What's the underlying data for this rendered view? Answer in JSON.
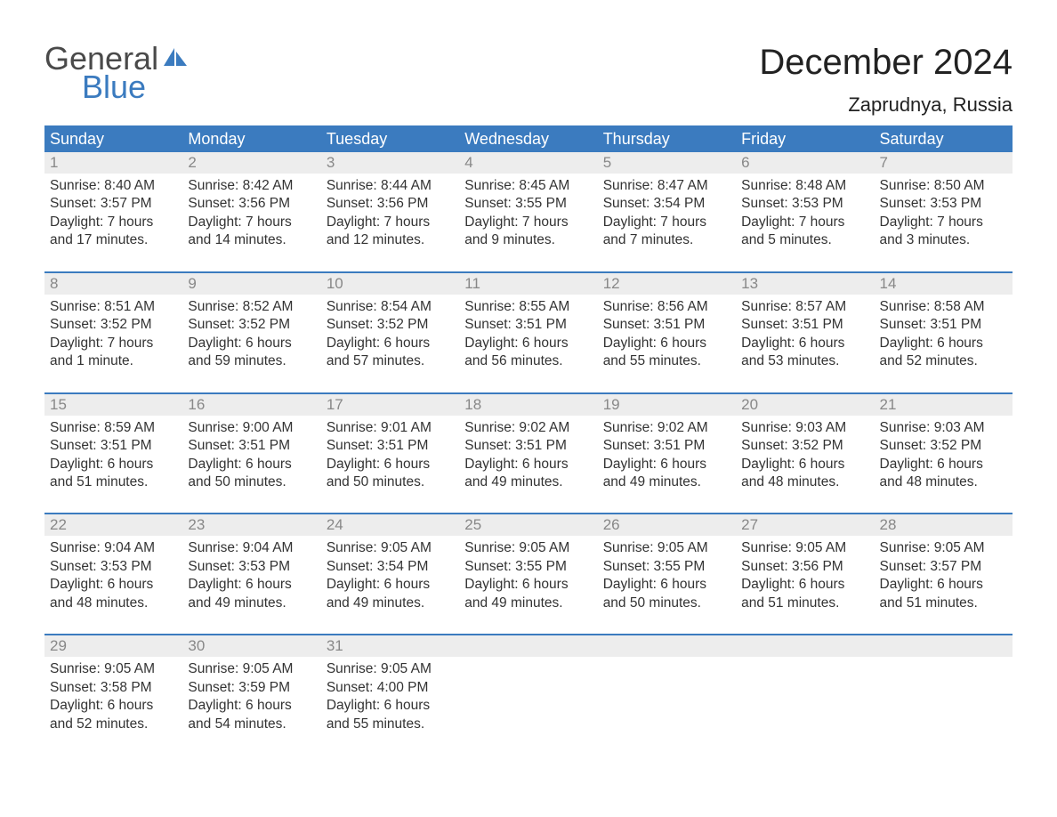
{
  "logo": {
    "word1": "General",
    "word2": "Blue"
  },
  "title": "December 2024",
  "location": "Zaprudnya, Russia",
  "colors": {
    "header_bg": "#3b7bbf",
    "header_text": "#ffffff",
    "daynum_bg": "#ededed",
    "daynum_text": "#888888",
    "body_text": "#333333",
    "week_border": "#3b7bbf",
    "page_bg": "#ffffff",
    "logo_gray": "#4a4a4a",
    "logo_blue": "#3b7bbf"
  },
  "day_labels": [
    "Sunday",
    "Monday",
    "Tuesday",
    "Wednesday",
    "Thursday",
    "Friday",
    "Saturday"
  ],
  "weeks": [
    [
      {
        "n": "1",
        "sr": "Sunrise: 8:40 AM",
        "ss": "Sunset: 3:57 PM",
        "d1": "Daylight: 7 hours",
        "d2": "and 17 minutes."
      },
      {
        "n": "2",
        "sr": "Sunrise: 8:42 AM",
        "ss": "Sunset: 3:56 PM",
        "d1": "Daylight: 7 hours",
        "d2": "and 14 minutes."
      },
      {
        "n": "3",
        "sr": "Sunrise: 8:44 AM",
        "ss": "Sunset: 3:56 PM",
        "d1": "Daylight: 7 hours",
        "d2": "and 12 minutes."
      },
      {
        "n": "4",
        "sr": "Sunrise: 8:45 AM",
        "ss": "Sunset: 3:55 PM",
        "d1": "Daylight: 7 hours",
        "d2": "and 9 minutes."
      },
      {
        "n": "5",
        "sr": "Sunrise: 8:47 AM",
        "ss": "Sunset: 3:54 PM",
        "d1": "Daylight: 7 hours",
        "d2": "and 7 minutes."
      },
      {
        "n": "6",
        "sr": "Sunrise: 8:48 AM",
        "ss": "Sunset: 3:53 PM",
        "d1": "Daylight: 7 hours",
        "d2": "and 5 minutes."
      },
      {
        "n": "7",
        "sr": "Sunrise: 8:50 AM",
        "ss": "Sunset: 3:53 PM",
        "d1": "Daylight: 7 hours",
        "d2": "and 3 minutes."
      }
    ],
    [
      {
        "n": "8",
        "sr": "Sunrise: 8:51 AM",
        "ss": "Sunset: 3:52 PM",
        "d1": "Daylight: 7 hours",
        "d2": "and 1 minute."
      },
      {
        "n": "9",
        "sr": "Sunrise: 8:52 AM",
        "ss": "Sunset: 3:52 PM",
        "d1": "Daylight: 6 hours",
        "d2": "and 59 minutes."
      },
      {
        "n": "10",
        "sr": "Sunrise: 8:54 AM",
        "ss": "Sunset: 3:52 PM",
        "d1": "Daylight: 6 hours",
        "d2": "and 57 minutes."
      },
      {
        "n": "11",
        "sr": "Sunrise: 8:55 AM",
        "ss": "Sunset: 3:51 PM",
        "d1": "Daylight: 6 hours",
        "d2": "and 56 minutes."
      },
      {
        "n": "12",
        "sr": "Sunrise: 8:56 AM",
        "ss": "Sunset: 3:51 PM",
        "d1": "Daylight: 6 hours",
        "d2": "and 55 minutes."
      },
      {
        "n": "13",
        "sr": "Sunrise: 8:57 AM",
        "ss": "Sunset: 3:51 PM",
        "d1": "Daylight: 6 hours",
        "d2": "and 53 minutes."
      },
      {
        "n": "14",
        "sr": "Sunrise: 8:58 AM",
        "ss": "Sunset: 3:51 PM",
        "d1": "Daylight: 6 hours",
        "d2": "and 52 minutes."
      }
    ],
    [
      {
        "n": "15",
        "sr": "Sunrise: 8:59 AM",
        "ss": "Sunset: 3:51 PM",
        "d1": "Daylight: 6 hours",
        "d2": "and 51 minutes."
      },
      {
        "n": "16",
        "sr": "Sunrise: 9:00 AM",
        "ss": "Sunset: 3:51 PM",
        "d1": "Daylight: 6 hours",
        "d2": "and 50 minutes."
      },
      {
        "n": "17",
        "sr": "Sunrise: 9:01 AM",
        "ss": "Sunset: 3:51 PM",
        "d1": "Daylight: 6 hours",
        "d2": "and 50 minutes."
      },
      {
        "n": "18",
        "sr": "Sunrise: 9:02 AM",
        "ss": "Sunset: 3:51 PM",
        "d1": "Daylight: 6 hours",
        "d2": "and 49 minutes."
      },
      {
        "n": "19",
        "sr": "Sunrise: 9:02 AM",
        "ss": "Sunset: 3:51 PM",
        "d1": "Daylight: 6 hours",
        "d2": "and 49 minutes."
      },
      {
        "n": "20",
        "sr": "Sunrise: 9:03 AM",
        "ss": "Sunset: 3:52 PM",
        "d1": "Daylight: 6 hours",
        "d2": "and 48 minutes."
      },
      {
        "n": "21",
        "sr": "Sunrise: 9:03 AM",
        "ss": "Sunset: 3:52 PM",
        "d1": "Daylight: 6 hours",
        "d2": "and 48 minutes."
      }
    ],
    [
      {
        "n": "22",
        "sr": "Sunrise: 9:04 AM",
        "ss": "Sunset: 3:53 PM",
        "d1": "Daylight: 6 hours",
        "d2": "and 48 minutes."
      },
      {
        "n": "23",
        "sr": "Sunrise: 9:04 AM",
        "ss": "Sunset: 3:53 PM",
        "d1": "Daylight: 6 hours",
        "d2": "and 49 minutes."
      },
      {
        "n": "24",
        "sr": "Sunrise: 9:05 AM",
        "ss": "Sunset: 3:54 PM",
        "d1": "Daylight: 6 hours",
        "d2": "and 49 minutes."
      },
      {
        "n": "25",
        "sr": "Sunrise: 9:05 AM",
        "ss": "Sunset: 3:55 PM",
        "d1": "Daylight: 6 hours",
        "d2": "and 49 minutes."
      },
      {
        "n": "26",
        "sr": "Sunrise: 9:05 AM",
        "ss": "Sunset: 3:55 PM",
        "d1": "Daylight: 6 hours",
        "d2": "and 50 minutes."
      },
      {
        "n": "27",
        "sr": "Sunrise: 9:05 AM",
        "ss": "Sunset: 3:56 PM",
        "d1": "Daylight: 6 hours",
        "d2": "and 51 minutes."
      },
      {
        "n": "28",
        "sr": "Sunrise: 9:05 AM",
        "ss": "Sunset: 3:57 PM",
        "d1": "Daylight: 6 hours",
        "d2": "and 51 minutes."
      }
    ],
    [
      {
        "n": "29",
        "sr": "Sunrise: 9:05 AM",
        "ss": "Sunset: 3:58 PM",
        "d1": "Daylight: 6 hours",
        "d2": "and 52 minutes."
      },
      {
        "n": "30",
        "sr": "Sunrise: 9:05 AM",
        "ss": "Sunset: 3:59 PM",
        "d1": "Daylight: 6 hours",
        "d2": "and 54 minutes."
      },
      {
        "n": "31",
        "sr": "Sunrise: 9:05 AM",
        "ss": "Sunset: 4:00 PM",
        "d1": "Daylight: 6 hours",
        "d2": "and 55 minutes."
      },
      null,
      null,
      null,
      null
    ]
  ]
}
